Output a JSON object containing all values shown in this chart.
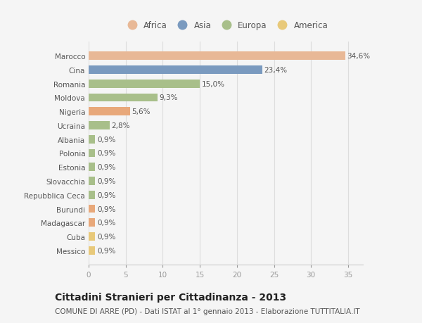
{
  "categories": [
    "Messico",
    "Cuba",
    "Madagascar",
    "Burundi",
    "Repubblica Ceca",
    "Slovacchia",
    "Estonia",
    "Polonia",
    "Albania",
    "Ucraina",
    "Nigeria",
    "Moldova",
    "Romania",
    "Cina",
    "Marocco"
  ],
  "values": [
    0.9,
    0.9,
    0.9,
    0.9,
    0.9,
    0.9,
    0.9,
    0.9,
    0.9,
    2.8,
    5.6,
    9.3,
    15.0,
    23.4,
    34.6
  ],
  "labels": [
    "0,9%",
    "0,9%",
    "0,9%",
    "0,9%",
    "0,9%",
    "0,9%",
    "0,9%",
    "0,9%",
    "0,9%",
    "2,8%",
    "5,6%",
    "9,3%",
    "15,0%",
    "23,4%",
    "34,6%"
  ],
  "colors": [
    "#e8c97a",
    "#e8c97a",
    "#e8a87a",
    "#e8a87a",
    "#a8bf8a",
    "#a8bf8a",
    "#a8bf8a",
    "#a8bf8a",
    "#a8bf8a",
    "#a8bf8a",
    "#e8a87a",
    "#a8bf8a",
    "#a8bf8a",
    "#7a9abf",
    "#e8b896"
  ],
  "legend_labels": [
    "Africa",
    "Asia",
    "Europa",
    "America"
  ],
  "legend_colors": [
    "#e8b896",
    "#7a9abf",
    "#a8bf8a",
    "#e8c97a"
  ],
  "xlim": [
    0,
    37
  ],
  "xticks": [
    0,
    5,
    10,
    15,
    20,
    25,
    30,
    35
  ],
  "title": "Cittadini Stranieri per Cittadinanza - 2013",
  "subtitle": "COMUNE DI ARRE (PD) - Dati ISTAT al 1° gennaio 2013 - Elaborazione TUTTITALIA.IT",
  "bg_color": "#f5f5f5",
  "bar_height": 0.6,
  "label_fontsize": 7.5,
  "ytick_fontsize": 7.5,
  "xtick_fontsize": 7.5,
  "title_fontsize": 10,
  "subtitle_fontsize": 7.5
}
